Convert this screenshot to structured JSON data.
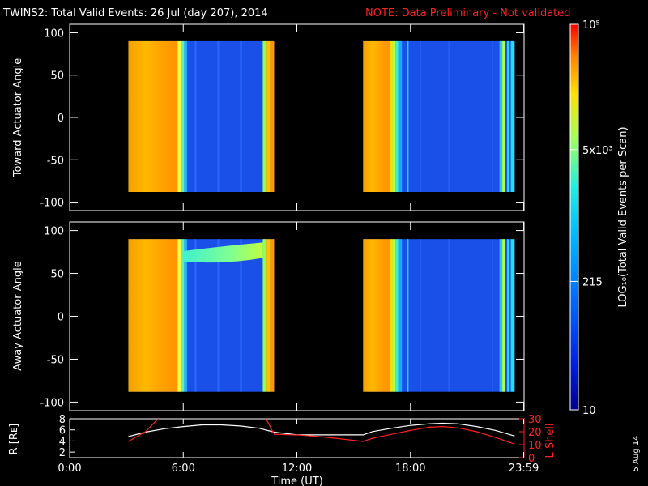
{
  "header": {
    "title": "TWINS2: Total Valid Events: 26 Jul (day 207), 2014",
    "note": "NOTE: Data Preliminary - Not validated"
  },
  "side_date": "5 Aug 14",
  "colors": {
    "background": "#000000",
    "axes": "#ffffff",
    "note": "#ff2020",
    "r_trace": "#ffffff",
    "lshell_trace": "#ff2020"
  },
  "chart_data": [
    {
      "type": "heatmap",
      "panel": "top",
      "ylabel": "Toward Actuator Angle",
      "xlim": [
        0,
        24
      ],
      "ylim": [
        -110,
        110
      ],
      "yticks": [
        100,
        50,
        0,
        -50,
        -100
      ],
      "ytick_labels": [
        "100",
        "50",
        "0",
        "-50",
        "-100"
      ],
      "coverage": [
        [
          3.1,
          10.8
        ],
        [
          15.5,
          23.5
        ]
      ],
      "angle_range": [
        -88,
        90
      ],
      "feature": "low-count (blue) region after ~5.8 UT and ~17.3 UT; high-count (orange) before"
    },
    {
      "type": "heatmap",
      "panel": "middle",
      "ylabel": "Away Actuator Angle",
      "xlim": [
        0,
        24
      ],
      "ylim": [
        -110,
        110
      ],
      "yticks": [
        100,
        50,
        0,
        -50,
        -100
      ],
      "ytick_labels": [
        "100",
        "50",
        "0",
        "-50",
        "-100"
      ],
      "coverage": [
        [
          3.1,
          10.8
        ],
        [
          15.5,
          23.5
        ]
      ],
      "angle_range": [
        -88,
        90
      ],
      "feature": "enhanced band near 65-85 deg between ~6 and ~10.5 UT"
    },
    {
      "type": "colorbar",
      "label": "LOG₁₀(Total Valid Events per Scan)",
      "scale": "log",
      "range": [
        10,
        100000
      ],
      "ticks": [
        {
          "value": 10,
          "label": "10"
        },
        {
          "value": 215,
          "label": "215"
        },
        {
          "value": 5000,
          "label": "5x10³"
        },
        {
          "value": 100000,
          "label": "10⁵"
        }
      ]
    },
    {
      "type": "line",
      "panel": "bottom",
      "xlabel": "Time (UT)",
      "xlim": [
        0,
        24
      ],
      "xticks": [
        0,
        6,
        12,
        18,
        23.98
      ],
      "xtick_labels": [
        "0:00",
        "6:00",
        "12:00",
        "18:00",
        "23:59"
      ],
      "ylabel_left": "R [Rᴇ]",
      "ylim_left": [
        1,
        8
      ],
      "yticks_left": [
        "2",
        "4",
        "6",
        "8"
      ],
      "ylabel_right": "L Shell",
      "ylim_right": [
        0,
        30
      ],
      "yticks_right": [
        "0",
        "10",
        "20",
        "30"
      ],
      "series": [
        {
          "name": "R",
          "color": "#ffffff",
          "axis": "left",
          "x": [
            3.1,
            4,
            5,
            6,
            7,
            8,
            9,
            10,
            10.8,
            12,
            13,
            14,
            15.5,
            16,
            17,
            18,
            19,
            19.7,
            20.5,
            21.5,
            22.5,
            23.5
          ],
          "y": [
            4.8,
            5.6,
            6.2,
            6.6,
            6.9,
            6.9,
            6.7,
            6.3,
            5.6,
            5.1,
            5.1,
            5.1,
            5.1,
            5.7,
            6.3,
            6.8,
            7.1,
            7.2,
            7.1,
            6.6,
            5.9,
            4.9
          ]
        },
        {
          "name": "L Shell",
          "color": "#ff2020",
          "axis": "right",
          "x": [
            3.1,
            4,
            4.8,
            5.3,
            9.8,
            10.3,
            10.8,
            12,
            13,
            14,
            15.5,
            16,
            17,
            18,
            19,
            19.7,
            20.5,
            21.5,
            22.5,
            23.5
          ],
          "y": [
            12.5,
            20,
            32,
            36,
            36,
            32,
            18,
            17.5,
            16.5,
            15,
            12.5,
            15,
            18,
            21,
            23.5,
            24,
            23,
            20,
            15.5,
            10.5
          ]
        }
      ]
    }
  ]
}
